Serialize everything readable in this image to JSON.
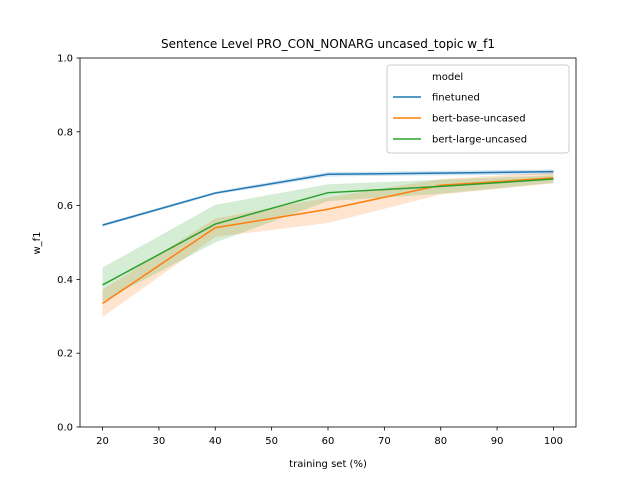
{
  "chart_data": {
    "type": "line",
    "title": "Sentence Level PRO_CON_NONARG uncased_topic w_f1",
    "xlabel": "training set (%)",
    "ylabel": "w_f1",
    "xlim": [
      16,
      104
    ],
    "ylim": [
      0.0,
      1.0
    ],
    "xticks": [
      20,
      30,
      40,
      50,
      60,
      70,
      80,
      90,
      100
    ],
    "yticks": [
      0.0,
      0.2,
      0.4,
      0.6,
      0.8,
      1.0
    ],
    "xtick_labels": [
      "20",
      "30",
      "40",
      "50",
      "60",
      "70",
      "80",
      "90",
      "100"
    ],
    "ytick_labels": [
      "0.0",
      "0.2",
      "0.4",
      "0.6",
      "0.8",
      "1.0"
    ],
    "grid": false,
    "legend": {
      "title": "model",
      "placement": "upper-right"
    },
    "x": [
      20,
      40,
      60,
      80,
      100
    ],
    "series": [
      {
        "name": "finetuned",
        "color": "#1f77b4",
        "values": [
          0.547,
          0.634,
          0.685,
          0.688,
          0.692
        ],
        "ci_low": [
          0.543,
          0.63,
          0.679,
          0.682,
          0.684
        ],
        "ci_high": [
          0.551,
          0.638,
          0.691,
          0.694,
          0.698
        ]
      },
      {
        "name": "bert-base-uncased",
        "color": "#ff7f0e",
        "values": [
          0.335,
          0.54,
          0.59,
          0.655,
          0.675
        ],
        "ci_low": [
          0.298,
          0.515,
          0.553,
          0.63,
          0.66
        ],
        "ci_high": [
          0.372,
          0.565,
          0.622,
          0.672,
          0.69
        ]
      },
      {
        "name": "bert-large-uncased",
        "color": "#2ca02c",
        "values": [
          0.385,
          0.55,
          0.635,
          0.652,
          0.672
        ],
        "ci_low": [
          0.34,
          0.5,
          0.612,
          0.632,
          0.662
        ],
        "ci_high": [
          0.432,
          0.602,
          0.658,
          0.67,
          0.682
        ]
      }
    ]
  }
}
